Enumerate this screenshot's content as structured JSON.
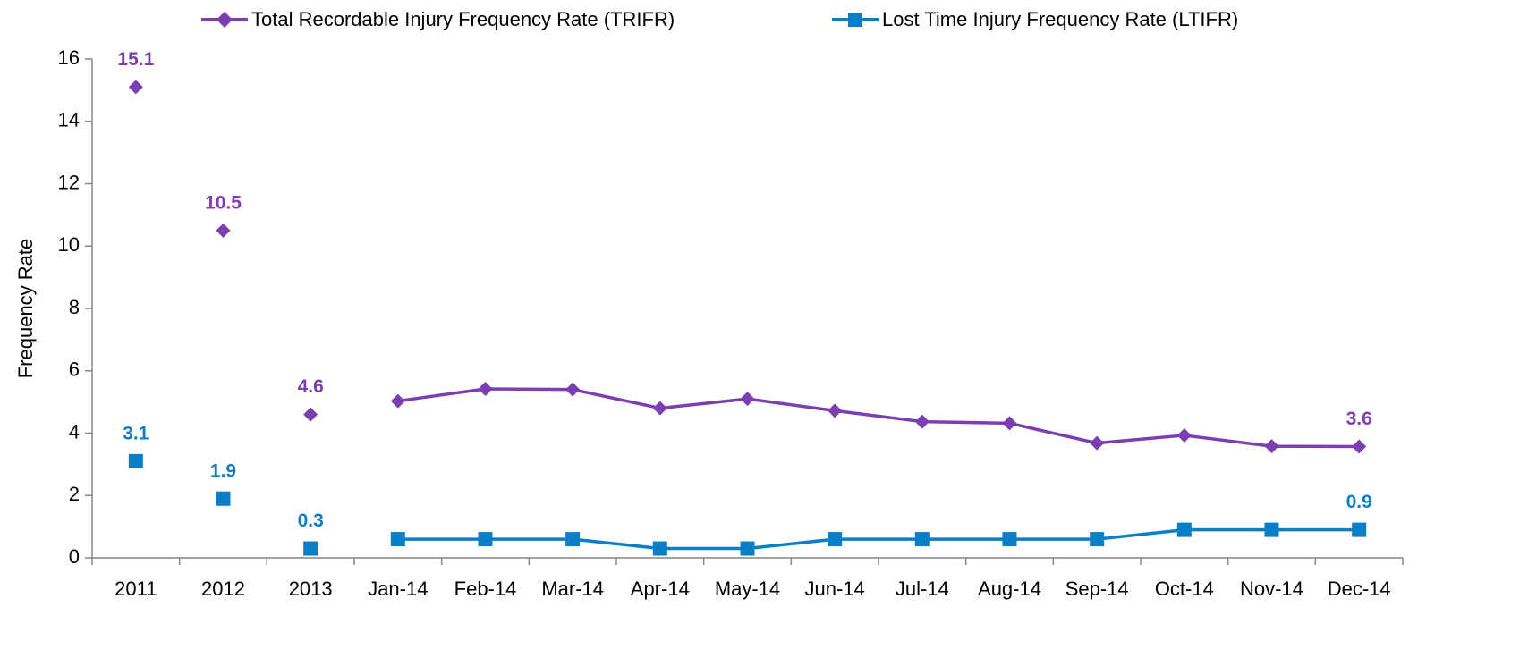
{
  "chart_data": {
    "type": "line",
    "y_axis_label": "Frequency Rate",
    "categories": [
      "2011",
      "2012",
      "2013",
      "Jan-14",
      "Feb-14",
      "Mar-14",
      "Apr-14",
      "May-14",
      "Jun-14",
      "Jul-14",
      "Aug-14",
      "Sep-14",
      "Oct-14",
      "Nov-14",
      "Dec-14"
    ],
    "connect_from": "Jan-14",
    "series": [
      {
        "name": "Total Recordable Injury Frequency Rate (TRIFR)",
        "color": "#7b3fb1",
        "marker": "diamond",
        "values": [
          15.1,
          10.5,
          4.6,
          5.03,
          5.42,
          5.4,
          4.8,
          5.1,
          4.72,
          4.37,
          4.32,
          3.68,
          3.93,
          3.58,
          3.57
        ],
        "value_labels": [
          "15.1",
          "10.5",
          "4.6",
          null,
          null,
          null,
          null,
          null,
          null,
          null,
          null,
          null,
          null,
          null,
          "3.6"
        ]
      },
      {
        "name": "Lost Time Injury Frequency Rate (LTIFR)",
        "color": "#0a7fc7",
        "marker": "square",
        "values": [
          3.1,
          1.9,
          0.3,
          0.6,
          0.6,
          0.6,
          0.3,
          0.3,
          0.6,
          0.6,
          0.6,
          0.6,
          0.9,
          0.9,
          0.9
        ],
        "value_labels": [
          "3.1",
          "1.9",
          "0.3",
          null,
          null,
          null,
          null,
          null,
          null,
          null,
          null,
          null,
          null,
          null,
          "0.9"
        ]
      }
    ],
    "ylim": [
      0,
      16
    ],
    "yticks": [
      0,
      2,
      4,
      6,
      8,
      10,
      12,
      14,
      16
    ],
    "grid": false,
    "legend": "top"
  }
}
